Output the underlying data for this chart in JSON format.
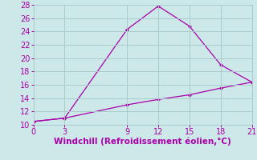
{
  "line1_x": [
    0,
    3,
    9,
    12,
    15,
    18,
    21
  ],
  "line1_y": [
    10.5,
    11.0,
    24.3,
    27.8,
    24.8,
    19.0,
    16.4
  ],
  "line2_x": [
    0,
    3,
    9,
    12,
    15,
    18,
    21
  ],
  "line2_y": [
    10.5,
    11.0,
    13.0,
    13.8,
    14.5,
    15.5,
    16.4
  ],
  "line_color": "#aa00aa",
  "background_color": "#cce8e8",
  "grid_color": "#aacccc",
  "xlabel": "Windchill (Refroidissement éolien,°C)",
  "xlabel_color": "#aa00aa",
  "tick_color": "#aa00aa",
  "xlim": [
    0,
    21
  ],
  "ylim": [
    10,
    28
  ],
  "xticks": [
    0,
    3,
    9,
    12,
    15,
    18,
    21
  ],
  "yticks": [
    10,
    12,
    14,
    16,
    18,
    20,
    22,
    24,
    26,
    28
  ],
  "tick_fontsize": 7,
  "xlabel_fontsize": 7.5
}
